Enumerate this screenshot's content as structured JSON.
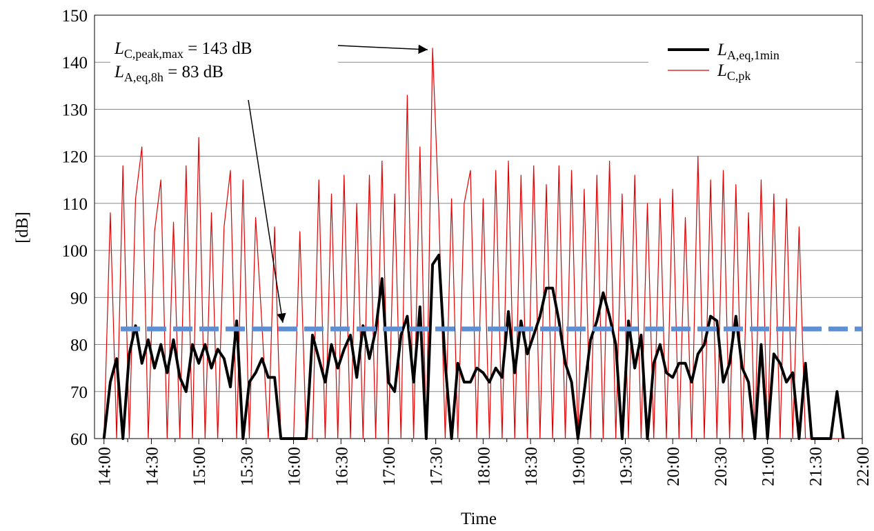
{
  "chart_data": {
    "type": "line",
    "x_label": "Time",
    "y_label": "[dB]",
    "xlim": [
      "13:54",
      "22:00"
    ],
    "xticks": [
      "14:00",
      "14:30",
      "15:00",
      "15:30",
      "16:00",
      "16:30",
      "17:00",
      "17:30",
      "18:00",
      "18:30",
      "19:00",
      "19:30",
      "20:00",
      "20:30",
      "21:00",
      "21:30",
      "22:00"
    ],
    "ylim": [
      60,
      150
    ],
    "yticks": [
      60,
      70,
      80,
      90,
      100,
      110,
      120,
      130,
      140,
      150
    ],
    "grid": true,
    "legend": "upper right",
    "x": [
      "14:00",
      "14:04",
      "14:08",
      "14:12",
      "14:16",
      "14:20",
      "14:24",
      "14:28",
      "14:32",
      "14:36",
      "14:40",
      "14:44",
      "14:48",
      "14:52",
      "14:56",
      "15:00",
      "15:04",
      "15:08",
      "15:12",
      "15:16",
      "15:20",
      "15:24",
      "15:28",
      "15:32",
      "15:36",
      "15:40",
      "15:44",
      "15:48",
      "15:52",
      "15:56",
      "16:00",
      "16:04",
      "16:08",
      "16:12",
      "16:16",
      "16:20",
      "16:24",
      "16:28",
      "16:32",
      "16:36",
      "16:40",
      "16:44",
      "16:48",
      "16:52",
      "16:56",
      "17:00",
      "17:04",
      "17:08",
      "17:12",
      "17:16",
      "17:20",
      "17:24",
      "17:28",
      "17:32",
      "17:36",
      "17:40",
      "17:44",
      "17:48",
      "17:52",
      "17:56",
      "18:00",
      "18:04",
      "18:08",
      "18:12",
      "18:16",
      "18:20",
      "18:24",
      "18:28",
      "18:32",
      "18:36",
      "18:40",
      "18:44",
      "18:48",
      "18:52",
      "18:56",
      "19:00",
      "19:04",
      "19:08",
      "19:12",
      "19:16",
      "19:20",
      "19:24",
      "19:28",
      "19:32",
      "19:36",
      "19:40",
      "19:44",
      "19:48",
      "19:52",
      "19:56",
      "20:00",
      "20:04",
      "20:08",
      "20:12",
      "20:16",
      "20:20",
      "20:24",
      "20:28",
      "20:32",
      "20:36",
      "20:40",
      "20:44",
      "20:48",
      "20:52",
      "20:56",
      "21:00",
      "21:04",
      "21:08",
      "21:12",
      "21:16",
      "21:20",
      "21:24",
      "21:28",
      "21:32",
      "21:36",
      "21:40",
      "21:44",
      "21:48"
    ],
    "series": [
      {
        "name": {
          "symbol": "L",
          "sub": "C,pk"
        },
        "color": "#e00000",
        "width": 1.2,
        "values": [
          60,
          108,
          60,
          118,
          60,
          111,
          122,
          60,
          104,
          115,
          60,
          106,
          60,
          118,
          60,
          124,
          60,
          108,
          60,
          105,
          117,
          60,
          115,
          60,
          107,
          84,
          60,
          105,
          60,
          60,
          60,
          104,
          60,
          60,
          115,
          60,
          112,
          60,
          116,
          60,
          110,
          60,
          116,
          60,
          119,
          60,
          112,
          60,
          133,
          60,
          122,
          60,
          143,
          108,
          60,
          111,
          60,
          110,
          117,
          60,
          111,
          60,
          117,
          60,
          119,
          60,
          116,
          60,
          118,
          60,
          114,
          60,
          118,
          60,
          117,
          60,
          113,
          60,
          116,
          60,
          119,
          60,
          112,
          60,
          116,
          60,
          110,
          60,
          111,
          60,
          113,
          60,
          107,
          60,
          120,
          60,
          115,
          60,
          117,
          60,
          114,
          60,
          108,
          60,
          115,
          60,
          112,
          60,
          111,
          60,
          105,
          60,
          60,
          60,
          60,
          60,
          60,
          60
        ]
      },
      {
        "name": {
          "symbol": "L",
          "sub": "A,eq,1min"
        },
        "color": "#000000",
        "width": 4,
        "values": [
          60,
          72,
          77,
          60,
          78,
          84,
          76,
          81,
          75,
          80,
          74,
          81,
          73,
          70,
          80,
          76,
          80,
          75,
          79,
          77,
          71,
          85,
          60,
          72,
          74,
          77,
          73,
          73,
          60,
          60,
          60,
          60,
          60,
          82,
          77,
          72,
          80,
          75,
          79,
          82,
          73,
          84,
          77,
          83,
          94,
          72,
          70,
          82,
          86,
          72,
          88,
          60,
          97,
          99,
          76,
          60,
          76,
          72,
          72,
          75,
          74,
          72,
          75,
          73,
          87,
          74,
          85,
          78,
          82,
          86,
          92,
          92,
          85,
          76,
          72,
          60,
          70,
          81,
          85,
          91,
          86,
          80,
          60,
          85,
          75,
          82,
          60,
          76,
          80,
          74,
          73,
          76,
          76,
          72,
          78,
          80,
          86,
          85,
          72,
          76,
          86,
          75,
          72,
          60,
          80,
          60,
          78,
          76,
          72,
          74,
          60,
          76,
          60,
          60,
          60,
          60,
          70,
          60
        ]
      }
    ],
    "reference_line": {
      "value": 83.3,
      "color": "#5b8fd6"
    },
    "annotations": [
      {
        "symbol": "L",
        "sub": "C,peak,max",
        "text": " = 143 dB"
      },
      {
        "symbol": "L",
        "sub": "A,eq,8h",
        "text": " = 83 dB"
      }
    ]
  }
}
